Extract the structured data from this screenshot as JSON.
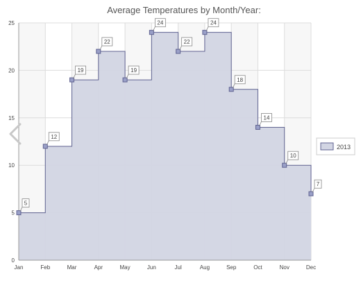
{
  "chart_data": {
    "type": "area",
    "step": true,
    "title": "Average Temperatures by Month/Year:",
    "categories": [
      "Jan",
      "Feb",
      "Mar",
      "Apr",
      "May",
      "Jun",
      "Jul",
      "Aug",
      "Sep",
      "Oct",
      "Nov",
      "Dec"
    ],
    "series": [
      {
        "name": "2013",
        "values": [
          5,
          12,
          19,
          22,
          19,
          24,
          22,
          24,
          18,
          14,
          10,
          7
        ]
      }
    ],
    "ylim": [
      0,
      25
    ],
    "yticks": [
      0,
      5,
      10,
      15,
      20,
      25
    ],
    "grid": true,
    "legend": "right",
    "data_labels": true,
    "colors": {
      "fill": "#d2d5e3",
      "line": "#5f6290",
      "marker": "#9aa0c8",
      "grid": "#dcdcdc",
      "band": "#f7f7f7",
      "text": "#444444"
    }
  },
  "nav": {
    "icon": "chevron-left-icon",
    "color": "#c8c8c8"
  }
}
